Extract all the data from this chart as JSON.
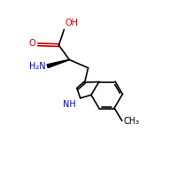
{
  "background_color": "#ffffff",
  "bond_color": "#000000",
  "N_color": "#0000cd",
  "O_color": "#cc0000",
  "figsize": [
    2.0,
    2.0
  ],
  "dpi": 100,
  "lw": 1.2,
  "fs": 7.0,
  "atoms": {
    "O_double": {
      "label": "O",
      "color": "#cc0000"
    },
    "OH": {
      "label": "OH",
      "color": "#cc0000"
    },
    "NH2": {
      "label": "H₂N",
      "color": "#0000cd"
    },
    "NH": {
      "label": "NH",
      "color": "#0000cd"
    },
    "CH3": {
      "label": "CH₃",
      "color": "#000000"
    }
  }
}
